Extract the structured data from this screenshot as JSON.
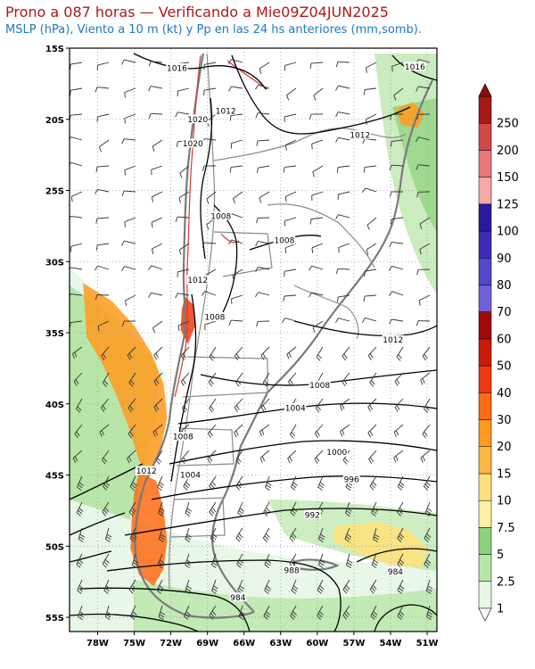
{
  "title": "Prono a 087 horas — Verificando a Mie09Z04JUN2025",
  "subtitle": "MSLP (hPa), Viento a 10 m (kt) y Pp en las 24 hs anteriores (mm,somb).",
  "map": {
    "lat_labels": [
      "15S",
      "20S",
      "25S",
      "30S",
      "35S",
      "40S",
      "45S",
      "50S",
      "55S"
    ],
    "lon_labels": [
      "78W",
      "75W",
      "72W",
      "69W",
      "66W",
      "63W",
      "60W",
      "57W",
      "54W",
      "51W"
    ],
    "isobar_labels": [
      {
        "text": "1016",
        "lon": -71.5,
        "lat": -16.5
      },
      {
        "text": "1016",
        "lon": -52.0,
        "lat": -16.4
      },
      {
        "text": "1012",
        "lon": -67.5,
        "lat": -19.5
      },
      {
        "text": "1012",
        "lon": -56.5,
        "lat": -21.2
      },
      {
        "text": "1020",
        "lon": -69.8,
        "lat": -20.1
      },
      {
        "text": "1020",
        "lon": -70.2,
        "lat": -21.8
      },
      {
        "text": "1008",
        "lon": -67.9,
        "lat": -26.9
      },
      {
        "text": "1008",
        "lon": -62.7,
        "lat": -28.6
      },
      {
        "text": "1012",
        "lon": -69.8,
        "lat": -31.4
      },
      {
        "text": "1008",
        "lon": -68.4,
        "lat": -34.0
      },
      {
        "text": "1012",
        "lon": -53.8,
        "lat": -35.6
      },
      {
        "text": "1008",
        "lon": -59.8,
        "lat": -38.8
      },
      {
        "text": "1004",
        "lon": -61.8,
        "lat": -40.4
      },
      {
        "text": "1008",
        "lon": -71.0,
        "lat": -42.4
      },
      {
        "text": "1000",
        "lon": -58.4,
        "lat": -43.5
      },
      {
        "text": "1012",
        "lon": -74.0,
        "lat": -44.8
      },
      {
        "text": "1004",
        "lon": -70.4,
        "lat": -45.1
      },
      {
        "text": "996",
        "lon": -57.2,
        "lat": -45.4
      },
      {
        "text": "992",
        "lon": -60.4,
        "lat": -47.9
      },
      {
        "text": "988",
        "lon": -62.1,
        "lat": -51.8
      },
      {
        "text": "984",
        "lon": -53.6,
        "lat": -51.9
      },
      {
        "text": "984",
        "lon": -66.5,
        "lat": -53.7
      }
    ],
    "precip_areas": [
      {
        "name": "pacific-band",
        "level": 20,
        "points": [
          [
            -79.2,
            -31.5
          ],
          [
            -76.8,
            -32.8
          ],
          [
            -75.0,
            -34.5
          ],
          [
            -73.6,
            -36.4
          ],
          [
            -72.6,
            -38.6
          ],
          [
            -72.3,
            -41.0
          ],
          [
            -72.9,
            -43.5
          ],
          [
            -73.8,
            -45.2
          ],
          [
            -74.6,
            -44.0
          ],
          [
            -75.4,
            -41.8
          ],
          [
            -76.4,
            -39.5
          ],
          [
            -77.6,
            -37.2
          ],
          [
            -78.9,
            -35.3
          ]
        ]
      },
      {
        "name": "patagonia-coast",
        "level": 30,
        "points": [
          [
            -74.6,
            -44.8
          ],
          [
            -73.2,
            -45.4
          ],
          [
            -72.6,
            -47.4
          ],
          [
            -72.3,
            -49.6
          ],
          [
            -72.6,
            -51.6
          ],
          [
            -73.4,
            -52.8
          ],
          [
            -74.6,
            -52.0
          ],
          [
            -75.3,
            -50.2
          ],
          [
            -75.2,
            -48.0
          ],
          [
            -75.0,
            -46.3
          ]
        ]
      },
      {
        "name": "atlantic-south",
        "level": 10,
        "points": [
          [
            -58.5,
            -48.6
          ],
          [
            -55.0,
            -48.3
          ],
          [
            -52.5,
            -48.9
          ],
          [
            -50.9,
            -50.2
          ],
          [
            -51.5,
            -51.5
          ],
          [
            -54.2,
            -51.3
          ],
          [
            -57.0,
            -50.4
          ],
          [
            -58.8,
            -49.6
          ]
        ]
      },
      {
        "name": "brazil-north",
        "level": 20,
        "points": [
          [
            -53.6,
            -19.3
          ],
          [
            -52.2,
            -18.8
          ],
          [
            -51.2,
            -19.6
          ],
          [
            -51.8,
            -20.6
          ],
          [
            -53.1,
            -20.4
          ]
        ]
      },
      {
        "name": "andes-central",
        "level": 40,
        "points": [
          [
            -70.8,
            -32.5
          ],
          [
            -70.2,
            -33.0
          ],
          [
            -70.0,
            -34.5
          ],
          [
            -70.6,
            -35.8
          ],
          [
            -71.2,
            -34.8
          ],
          [
            -71.1,
            -33.3
          ]
        ]
      }
    ]
  },
  "colorbar": {
    "levels": [
      "1",
      "2.5",
      "5",
      "7.5",
      "10",
      "15",
      "20",
      "30",
      "40",
      "50",
      "60",
      "70",
      "80",
      "90",
      "100",
      "125",
      "150",
      "200",
      "250"
    ],
    "colors": [
      "#e8f7e8",
      "#b8e6a8",
      "#8cd27a",
      "#fff0a8",
      "#ffe07a",
      "#ffb846",
      "#ff9a1e",
      "#ff6a14",
      "#ee3a0e",
      "#c81a0a",
      "#a00808",
      "#7060d8",
      "#5048c8",
      "#3c2cb8",
      "#2a18a0",
      "#f4a8a8",
      "#e87878",
      "#d04848",
      "#a81818"
    ]
  }
}
